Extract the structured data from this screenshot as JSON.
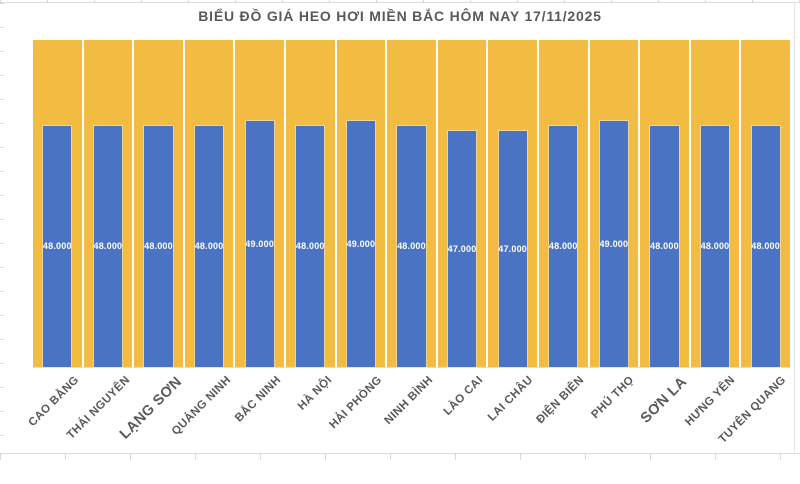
{
  "chart_data": {
    "type": "bar",
    "title": "BIỂU ĐỒ GIÁ HEO HƠI MIỀN BẮC HÔM NAY 17/11/2025",
    "categories": [
      "CAO BẰNG",
      "THÁI NGUYÊN",
      "LẠNG SƠN",
      "QUẢNG NINH",
      "BẮC NINH",
      "HÀ NỘI",
      "HẢI PHÒNG",
      "NINH BÌNH",
      "LÀO CAI",
      "LAI CHÂU",
      "ĐIỆN BIÊN",
      "PHÚ THỌ",
      "SƠN LA",
      "HƯNG YÊN",
      "TUYÊN QUANG"
    ],
    "values": [
      48000,
      48000,
      48000,
      48000,
      49000,
      48000,
      49000,
      48000,
      47000,
      47000,
      48000,
      49000,
      48000,
      48000,
      48000
    ],
    "value_labels": [
      "48.000",
      "48.000",
      "48.000",
      "48.000",
      "49.000",
      "48.000",
      "49.000",
      "48.000",
      "47.000",
      "47.000",
      "48.000",
      "49.000",
      "48.000",
      "48.000",
      "48.000"
    ],
    "ylim": [
      0,
      65000
    ],
    "xlabel": "",
    "ylabel": "",
    "grid": "hidden",
    "legend": "none",
    "emphasized_category_indices": [
      2,
      12
    ],
    "colors": {
      "bar_fill": "#4B73C4",
      "column_background_fill": "#F2BB41",
      "value_label_text": "#FFFFFF",
      "axis_label_text": "#595959",
      "title_text": "#595959",
      "spreadsheet_grid_hint": "#D9D9D9"
    }
  }
}
